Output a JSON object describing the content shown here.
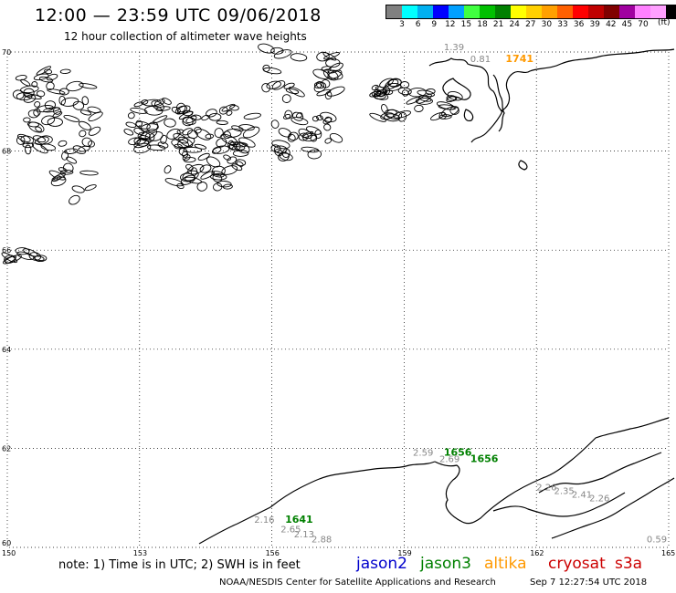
{
  "title": "12:00 — 23:59 UTC 09/06/2018",
  "subtitle": "12 hour collection of altimeter wave heights",
  "legend": {
    "colors": [
      "#808080",
      "#00ffff",
      "#00b0f0",
      "#0000ff",
      "#00a0ff",
      "#40ff40",
      "#00c000",
      "#008000",
      "#ffff00",
      "#ffd000",
      "#ffa000",
      "#ff6000",
      "#ff0000",
      "#c00000",
      "#800000",
      "#a000a0",
      "#ff80ff",
      "#ffa0ff",
      "#000000"
    ],
    "ticks": [
      "3",
      "6",
      "9",
      "12",
      "15",
      "18",
      "21",
      "24",
      "27",
      "30",
      "33",
      "36",
      "39",
      "42",
      "45",
      "70"
    ],
    "unit": "(ft)"
  },
  "map": {
    "lat_labels": [
      "70",
      "68",
      "66",
      "64",
      "62",
      "60"
    ],
    "lon_labels": [
      "150",
      "153",
      "156",
      "159",
      "162",
      "165"
    ],
    "observations": [
      {
        "text": "1.39",
        "color": "#888888",
        "lon": 159.9,
        "lat": 70.04
      },
      {
        "text": "0.81",
        "color": "#888888",
        "lon": 160.5,
        "lat": 69.8
      },
      {
        "text": "1741",
        "color": "#ff9900",
        "lon": 161.3,
        "lat": 69.8
      },
      {
        "text": "2.59",
        "color": "#888888",
        "lon": 159.2,
        "lat": 61.85
      },
      {
        "text": "1656",
        "color": "#008000",
        "lon": 159.9,
        "lat": 61.85
      },
      {
        "text": "2.69",
        "color": "#888888",
        "lon": 159.8,
        "lat": 61.72
      },
      {
        "text": "1656",
        "color": "#008000",
        "lon": 160.5,
        "lat": 61.72
      },
      {
        "text": "2.16",
        "color": "#888888",
        "lon": 155.6,
        "lat": 60.5
      },
      {
        "text": "1641",
        "color": "#008000",
        "lon": 156.3,
        "lat": 60.5
      },
      {
        "text": "2.65",
        "color": "#888888",
        "lon": 156.2,
        "lat": 60.3
      },
      {
        "text": "2.13",
        "color": "#888888",
        "lon": 156.5,
        "lat": 60.2
      },
      {
        "text": "2.88",
        "color": "#888888",
        "lon": 156.9,
        "lat": 60.1
      },
      {
        "text": "2.26",
        "color": "#888888",
        "lon": 162.0,
        "lat": 61.15
      },
      {
        "text": "2.35",
        "color": "#888888",
        "lon": 162.4,
        "lat": 61.08
      },
      {
        "text": "2.41",
        "color": "#888888",
        "lon": 162.8,
        "lat": 61.0
      },
      {
        "text": "2.26",
        "color": "#888888",
        "lon": 163.2,
        "lat": 60.93
      },
      {
        "text": "0.59",
        "color": "#888888",
        "lon": 164.5,
        "lat": 60.1
      }
    ]
  },
  "note": "note: 1) Time is in UTC; 2) SWH is in feet",
  "satellites": [
    {
      "name": "jason2",
      "color": "#0000cc"
    },
    {
      "name": "jason3",
      "color": "#008000"
    },
    {
      "name": "altika",
      "color": "#ff9900"
    },
    {
      "name": "cryosat",
      "color": "#cc0000"
    },
    {
      "name": "s3a",
      "color": "#cc0000"
    }
  ],
  "footer": "NOAA/NESDIS Center for Satellite Applications and Research",
  "footer_time": "Sep  7 12:27:54 UTC 2018"
}
